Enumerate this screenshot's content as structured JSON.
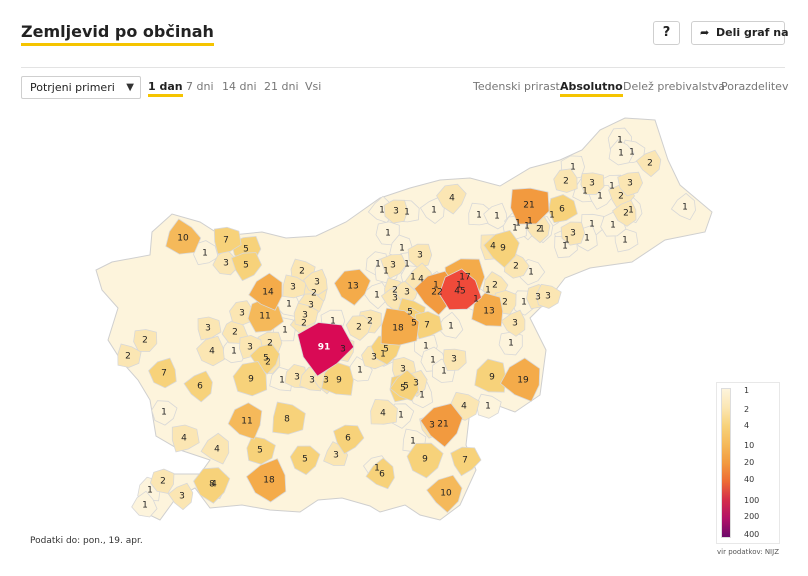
{
  "header": {
    "title": "Zemljevid po občinah",
    "help_label": "?",
    "share_label": "Deli graf na"
  },
  "controls": {
    "metric_select": "Potrjeni primeri",
    "periods": [
      "1 dan",
      "7 dni",
      "14 dni",
      "21 dni",
      "Vsi"
    ],
    "active_period": "1 dan",
    "modes": [
      "Tedenski prirast",
      "Absolutno",
      "Delež prebivalstva",
      "Porazdelitev"
    ],
    "active_mode": "Absolutno"
  },
  "footer": {
    "date_note": "Podatki do: pon., 19. apr.",
    "source": "vir podatkov: NIJZ"
  },
  "legend": {
    "stops": [
      "1",
      "2",
      "4",
      "10",
      "20",
      "40",
      "100",
      "200",
      "400"
    ],
    "colors": [
      "#fdf4dc",
      "#fbe6b3",
      "#f7d27a",
      "#f5b95a",
      "#f29a3f",
      "#ed6b34",
      "#d42d4a",
      "#b21267",
      "#6d0a6a"
    ]
  },
  "colors": {
    "accent": "#f5c400",
    "border": "#d4d4d4",
    "no_data": "#ffffff"
  },
  "map_values": [
    "1",
    "1",
    "1",
    "2",
    "1",
    "3",
    "2",
    "1",
    "3",
    "1",
    "2",
    "1",
    "6",
    "21",
    "4",
    "1",
    "1",
    "3",
    "1",
    "1",
    "1",
    "1",
    "1",
    "1",
    "1",
    "1",
    "2",
    "1",
    "1",
    "1",
    "10",
    "7",
    "5",
    "1",
    "2",
    "3",
    "5",
    "1",
    "3",
    "9",
    "1",
    "1",
    "1",
    "1",
    "1",
    "1",
    "3",
    "1",
    "4",
    "1",
    "1",
    "3",
    "13",
    "2",
    "17",
    "2",
    "1",
    "2",
    "1",
    "1",
    "4",
    "1",
    "3",
    "1",
    "22",
    "45",
    "1",
    "2",
    "3",
    "3",
    "1",
    "2",
    "1",
    "3",
    "3",
    "3",
    "3",
    "2",
    "1",
    "13",
    "14",
    "1",
    "3",
    "2",
    "5",
    "2",
    "11",
    "3",
    "18",
    "5",
    "7",
    "1",
    "2",
    "1",
    "3",
    "2",
    "2",
    "3",
    "1",
    "2",
    "5",
    "91",
    "3",
    "1",
    "4",
    "1",
    "1",
    "1",
    "7",
    "3",
    "3",
    "3",
    "3",
    "3",
    "5",
    "1",
    "3",
    "6",
    "2",
    "9",
    "9",
    "3",
    "5",
    "3",
    "1",
    "9",
    "19",
    "1",
    "2",
    "1",
    "1",
    "8",
    "5",
    "4",
    "4",
    "1",
    "1",
    "4",
    "1",
    "4",
    "11",
    "21",
    "1",
    "3",
    "4",
    "6",
    "5",
    "1",
    "9",
    "7",
    "5",
    "1",
    "3",
    "6",
    "18",
    "10",
    "2",
    "3",
    "8",
    "1"
  ]
}
